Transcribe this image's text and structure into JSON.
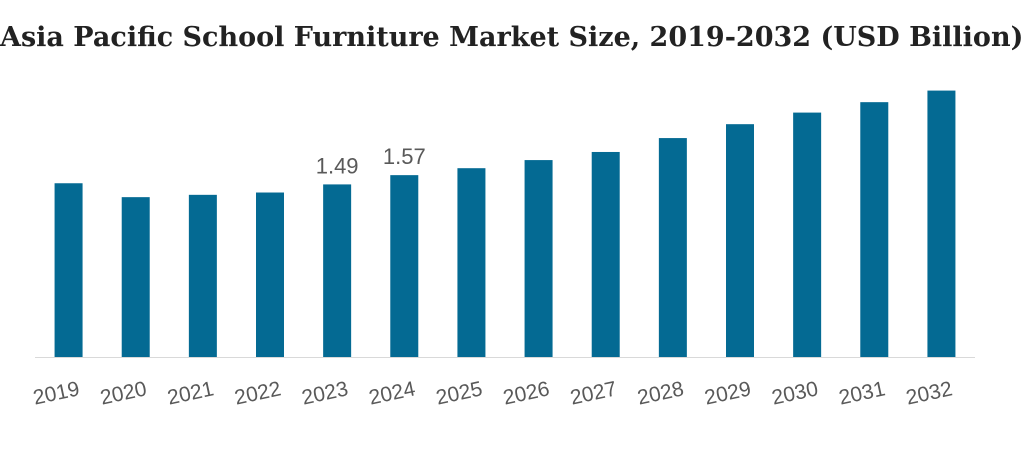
{
  "chart_data": {
    "type": "bar",
    "title": "Asia Pacific School Furniture Market Size, 2019-2032 (USD Billion)",
    "xlabel": "",
    "ylabel": "",
    "categories": [
      "2019",
      "2020",
      "2021",
      "2022",
      "2023",
      "2024",
      "2025",
      "2026",
      "2027",
      "2028",
      "2029",
      "2030",
      "2031",
      "2032"
    ],
    "values": [
      1.5,
      1.38,
      1.4,
      1.42,
      1.49,
      1.57,
      1.63,
      1.7,
      1.77,
      1.89,
      2.01,
      2.11,
      2.2,
      2.3
    ],
    "data_labels": [
      {
        "index": 4,
        "text": "1.49"
      },
      {
        "index": 5,
        "text": "1.57"
      }
    ],
    "ylim": [
      0,
      2.4
    ],
    "grid": false,
    "legend": "none",
    "colors": {
      "bar": "#046A93",
      "axis": "#D9D9D9",
      "text": "#595959",
      "title": "#222222"
    }
  }
}
